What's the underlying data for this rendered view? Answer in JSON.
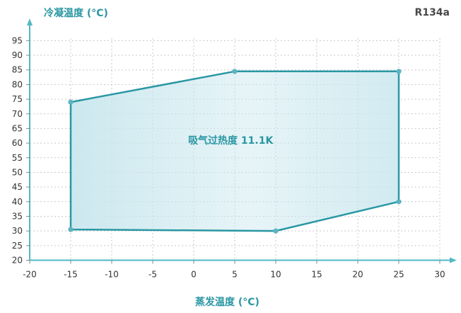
{
  "chart_data": {
    "type": "area",
    "ylabel": "冷凝温度 (°C)",
    "xlabel": "蒸发温度 (°C)",
    "refrigerant": "R134a",
    "annotation": "吸气过热度 11.1K",
    "xlim": [
      -20,
      31
    ],
    "ylim": [
      20,
      96
    ],
    "x_ticks": [
      -20,
      -15,
      -10,
      -5,
      0,
      5,
      10,
      15,
      20,
      25,
      30
    ],
    "y_ticks": [
      20,
      25,
      30,
      35,
      40,
      45,
      50,
      55,
      60,
      65,
      70,
      75,
      80,
      85,
      90,
      95
    ],
    "grid": true,
    "envelope": {
      "x": [
        -15,
        5,
        25,
        25,
        10,
        -15
      ],
      "y": [
        74,
        84.5,
        84.5,
        40,
        30,
        30.5
      ]
    },
    "colors": {
      "line": "#2a97a3",
      "axis": "#52b8c4",
      "fill": "#c9e7ee",
      "text": "#2a97a3"
    }
  }
}
